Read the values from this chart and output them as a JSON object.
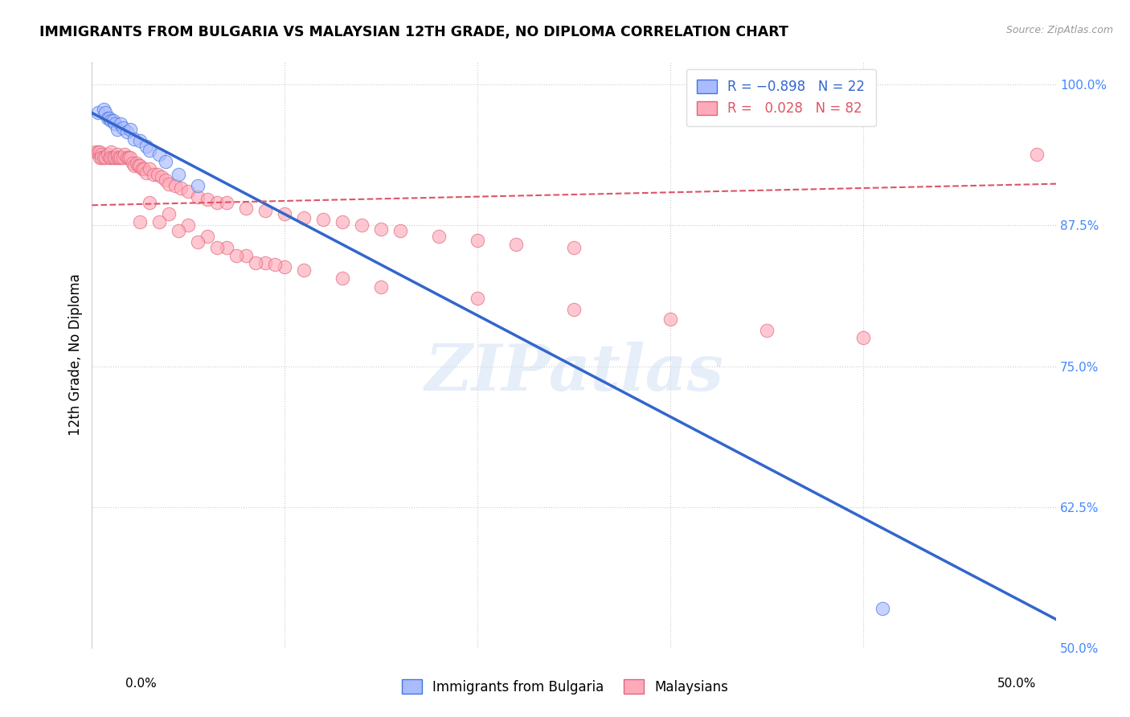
{
  "title": "IMMIGRANTS FROM BULGARIA VS MALAYSIAN 12TH GRADE, NO DIPLOMA CORRELATION CHART",
  "source": "Source: ZipAtlas.com",
  "ylabel": "12th Grade, No Diploma",
  "xlim": [
    0.0,
    0.5
  ],
  "ylim": [
    0.5,
    1.02
  ],
  "yticks": [
    0.5,
    0.625,
    0.75,
    0.875,
    1.0
  ],
  "ytick_labels": [
    "50.0%",
    "62.5%",
    "75.0%",
    "87.5%",
    "100.0%"
  ],
  "watermark": "ZIPatlas",
  "bulgaria_color": "#aabbff",
  "bulgaria_edge_color": "#4477dd",
  "malaysian_color": "#ffaabb",
  "malaysian_edge_color": "#dd6677",
  "bulgaria_line_color": "#3366cc",
  "malaysian_line_color": "#dd5566",
  "bulgaria_line_x": [
    0.0,
    0.5
  ],
  "bulgaria_line_y": [
    0.975,
    0.525
  ],
  "malaysian_line_x": [
    0.0,
    0.5
  ],
  "malaysian_line_y": [
    0.893,
    0.912
  ],
  "bulgaria_scatter_x": [
    0.003,
    0.006,
    0.007,
    0.008,
    0.009,
    0.01,
    0.011,
    0.012,
    0.013,
    0.015,
    0.016,
    0.018,
    0.02,
    0.022,
    0.025,
    0.028,
    0.03,
    0.035,
    0.038,
    0.045,
    0.055,
    0.41
  ],
  "bulgaria_scatter_y": [
    0.975,
    0.978,
    0.975,
    0.97,
    0.97,
    0.968,
    0.968,
    0.965,
    0.96,
    0.965,
    0.962,
    0.958,
    0.96,
    0.952,
    0.95,
    0.945,
    0.942,
    0.938,
    0.932,
    0.92,
    0.91,
    0.535
  ],
  "malaysian_scatter_x": [
    0.002,
    0.003,
    0.004,
    0.004,
    0.005,
    0.005,
    0.006,
    0.007,
    0.008,
    0.009,
    0.01,
    0.01,
    0.011,
    0.012,
    0.013,
    0.013,
    0.014,
    0.015,
    0.016,
    0.017,
    0.018,
    0.019,
    0.02,
    0.021,
    0.022,
    0.023,
    0.024,
    0.025,
    0.026,
    0.027,
    0.028,
    0.03,
    0.032,
    0.034,
    0.036,
    0.038,
    0.04,
    0.043,
    0.046,
    0.05,
    0.055,
    0.06,
    0.065,
    0.07,
    0.08,
    0.09,
    0.1,
    0.11,
    0.12,
    0.13,
    0.14,
    0.15,
    0.16,
    0.18,
    0.2,
    0.22,
    0.25,
    0.03,
    0.04,
    0.05,
    0.06,
    0.07,
    0.08,
    0.09,
    0.1,
    0.025,
    0.035,
    0.045,
    0.055,
    0.065,
    0.075,
    0.085,
    0.095,
    0.11,
    0.13,
    0.15,
    0.2,
    0.25,
    0.3,
    0.35,
    0.4,
    0.49
  ],
  "malaysian_scatter_y": [
    0.94,
    0.94,
    0.94,
    0.935,
    0.938,
    0.935,
    0.935,
    0.935,
    0.938,
    0.935,
    0.94,
    0.935,
    0.935,
    0.935,
    0.935,
    0.938,
    0.935,
    0.935,
    0.935,
    0.938,
    0.935,
    0.935,
    0.935,
    0.93,
    0.928,
    0.93,
    0.928,
    0.928,
    0.925,
    0.925,
    0.922,
    0.925,
    0.92,
    0.92,
    0.918,
    0.915,
    0.912,
    0.91,
    0.908,
    0.905,
    0.9,
    0.898,
    0.895,
    0.895,
    0.89,
    0.888,
    0.885,
    0.882,
    0.88,
    0.878,
    0.875,
    0.872,
    0.87,
    0.865,
    0.862,
    0.858,
    0.855,
    0.895,
    0.885,
    0.875,
    0.865,
    0.855,
    0.848,
    0.842,
    0.838,
    0.878,
    0.878,
    0.87,
    0.86,
    0.855,
    0.848,
    0.842,
    0.84,
    0.835,
    0.828,
    0.82,
    0.81,
    0.8,
    0.792,
    0.782,
    0.775,
    0.938
  ]
}
